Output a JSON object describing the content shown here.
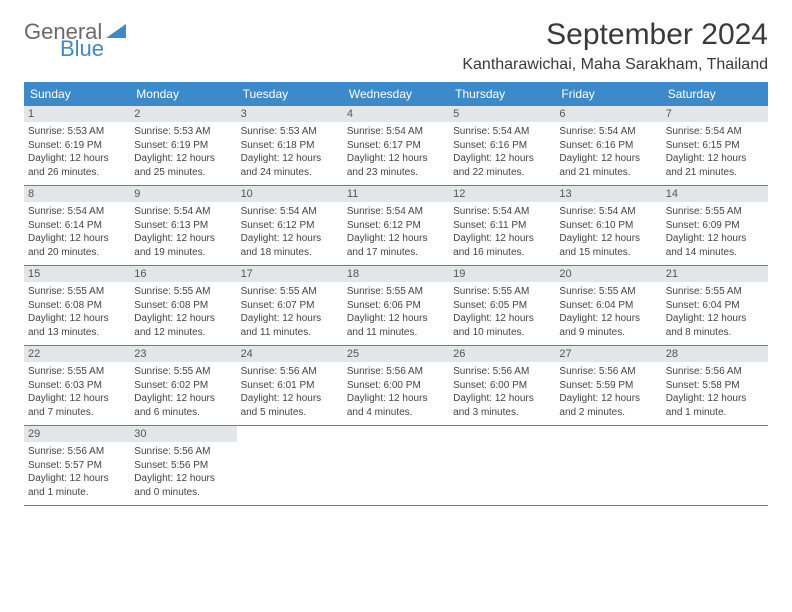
{
  "logo": {
    "main": "General",
    "sub": "Blue",
    "tri_color": "#3c8ac9"
  },
  "title": "September 2024",
  "location": "Kantharawichai, Maha Sarakham, Thailand",
  "header_bg": "#3c8ac9",
  "daynum_bg": "#e3e6e9",
  "days_of_week": [
    "Sunday",
    "Monday",
    "Tuesday",
    "Wednesday",
    "Thursday",
    "Friday",
    "Saturday"
  ],
  "weeks": [
    [
      {
        "n": "1",
        "sr": "5:53 AM",
        "ss": "6:19 PM",
        "dl": "12 hours and 26 minutes."
      },
      {
        "n": "2",
        "sr": "5:53 AM",
        "ss": "6:19 PM",
        "dl": "12 hours and 25 minutes."
      },
      {
        "n": "3",
        "sr": "5:53 AM",
        "ss": "6:18 PM",
        "dl": "12 hours and 24 minutes."
      },
      {
        "n": "4",
        "sr": "5:54 AM",
        "ss": "6:17 PM",
        "dl": "12 hours and 23 minutes."
      },
      {
        "n": "5",
        "sr": "5:54 AM",
        "ss": "6:16 PM",
        "dl": "12 hours and 22 minutes."
      },
      {
        "n": "6",
        "sr": "5:54 AM",
        "ss": "6:16 PM",
        "dl": "12 hours and 21 minutes."
      },
      {
        "n": "7",
        "sr": "5:54 AM",
        "ss": "6:15 PM",
        "dl": "12 hours and 21 minutes."
      }
    ],
    [
      {
        "n": "8",
        "sr": "5:54 AM",
        "ss": "6:14 PM",
        "dl": "12 hours and 20 minutes."
      },
      {
        "n": "9",
        "sr": "5:54 AM",
        "ss": "6:13 PM",
        "dl": "12 hours and 19 minutes."
      },
      {
        "n": "10",
        "sr": "5:54 AM",
        "ss": "6:12 PM",
        "dl": "12 hours and 18 minutes."
      },
      {
        "n": "11",
        "sr": "5:54 AM",
        "ss": "6:12 PM",
        "dl": "12 hours and 17 minutes."
      },
      {
        "n": "12",
        "sr": "5:54 AM",
        "ss": "6:11 PM",
        "dl": "12 hours and 16 minutes."
      },
      {
        "n": "13",
        "sr": "5:54 AM",
        "ss": "6:10 PM",
        "dl": "12 hours and 15 minutes."
      },
      {
        "n": "14",
        "sr": "5:55 AM",
        "ss": "6:09 PM",
        "dl": "12 hours and 14 minutes."
      }
    ],
    [
      {
        "n": "15",
        "sr": "5:55 AM",
        "ss": "6:08 PM",
        "dl": "12 hours and 13 minutes."
      },
      {
        "n": "16",
        "sr": "5:55 AM",
        "ss": "6:08 PM",
        "dl": "12 hours and 12 minutes."
      },
      {
        "n": "17",
        "sr": "5:55 AM",
        "ss": "6:07 PM",
        "dl": "12 hours and 11 minutes."
      },
      {
        "n": "18",
        "sr": "5:55 AM",
        "ss": "6:06 PM",
        "dl": "12 hours and 11 minutes."
      },
      {
        "n": "19",
        "sr": "5:55 AM",
        "ss": "6:05 PM",
        "dl": "12 hours and 10 minutes."
      },
      {
        "n": "20",
        "sr": "5:55 AM",
        "ss": "6:04 PM",
        "dl": "12 hours and 9 minutes."
      },
      {
        "n": "21",
        "sr": "5:55 AM",
        "ss": "6:04 PM",
        "dl": "12 hours and 8 minutes."
      }
    ],
    [
      {
        "n": "22",
        "sr": "5:55 AM",
        "ss": "6:03 PM",
        "dl": "12 hours and 7 minutes."
      },
      {
        "n": "23",
        "sr": "5:55 AM",
        "ss": "6:02 PM",
        "dl": "12 hours and 6 minutes."
      },
      {
        "n": "24",
        "sr": "5:56 AM",
        "ss": "6:01 PM",
        "dl": "12 hours and 5 minutes."
      },
      {
        "n": "25",
        "sr": "5:56 AM",
        "ss": "6:00 PM",
        "dl": "12 hours and 4 minutes."
      },
      {
        "n": "26",
        "sr": "5:56 AM",
        "ss": "6:00 PM",
        "dl": "12 hours and 3 minutes."
      },
      {
        "n": "27",
        "sr": "5:56 AM",
        "ss": "5:59 PM",
        "dl": "12 hours and 2 minutes."
      },
      {
        "n": "28",
        "sr": "5:56 AM",
        "ss": "5:58 PM",
        "dl": "12 hours and 1 minute."
      }
    ],
    [
      {
        "n": "29",
        "sr": "5:56 AM",
        "ss": "5:57 PM",
        "dl": "12 hours and 1 minute."
      },
      {
        "n": "30",
        "sr": "5:56 AM",
        "ss": "5:56 PM",
        "dl": "12 hours and 0 minutes."
      },
      null,
      null,
      null,
      null,
      null
    ]
  ],
  "labels": {
    "sunrise": "Sunrise:",
    "sunset": "Sunset:",
    "daylight": "Daylight:"
  }
}
